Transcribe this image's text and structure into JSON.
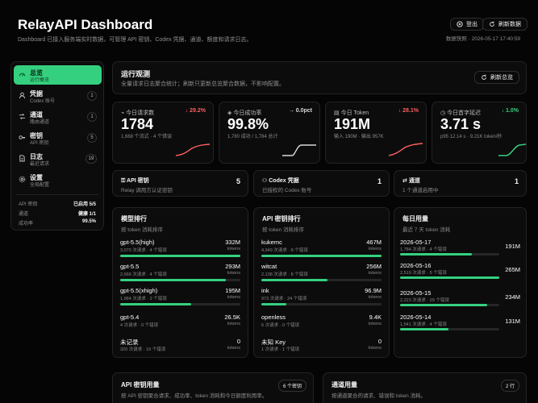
{
  "header": {
    "title": "RelayAPI Dashboard",
    "subtitle": "Dashboard 已接入服务端实时数据，可管理 API 密钥、Codex 凭据、通道、额度和请求日志。",
    "logout_label": "登出",
    "refresh_label": "刷新数据",
    "snapshot": "数据快照 · 2026-05-17 17:40:59"
  },
  "sidebar": {
    "items": [
      {
        "label": "总览",
        "sub": "运行概览",
        "count": ""
      },
      {
        "label": "凭据",
        "sub": "Codex 账号",
        "count": "1"
      },
      {
        "label": "通道",
        "sub": "路由通道",
        "count": "1"
      },
      {
        "label": "密钥",
        "sub": "API 密钥",
        "count": "5"
      },
      {
        "label": "日志",
        "sub": "最近请求",
        "count": "19"
      },
      {
        "label": "设置",
        "sub": "全局配置",
        "count": ""
      }
    ],
    "status": [
      {
        "label": "API 密钥",
        "value": "已启用 5/5"
      },
      {
        "label": "通道",
        "value": "健康 1/1"
      },
      {
        "label": "成功率",
        "value": "99.5%"
      }
    ]
  },
  "overview": {
    "title": "运行观测",
    "subtitle": "全量请求日志聚合统计；刷新只更新总览聚合数据，不影响配置。",
    "refresh_label": "刷新总览"
  },
  "kpis": [
    {
      "label": "今日请求数",
      "delta": "↓ 29.2%",
      "value": "1784",
      "sub": "1,668 个流式 · 4 个错误",
      "color": "#ff5f5f"
    },
    {
      "label": "今日成功率",
      "delta": "→ 0.0pct",
      "value": "99.8%",
      "sub": "1,780 成功 / 1,784 总计",
      "color": "#d8d8d8"
    },
    {
      "label": "今日 Token",
      "delta": "↓ 28.1%",
      "value": "191M",
      "sub": "输入 190M · 输出 957K",
      "color": "#ff5f5f"
    },
    {
      "label": "今日首字延迟",
      "delta": "↓ 1.0%",
      "value": "3.71 s",
      "sub": "p95 12.14 s · 9.21K token/秒",
      "color": "#35d07f"
    }
  ],
  "minis": [
    {
      "title": "API 密钥",
      "sub": "Relay 调用方认证密钥",
      "count": "5"
    },
    {
      "title": "Codex 凭据",
      "sub": "已授权的 Codex 账号",
      "count": "1"
    },
    {
      "title": "通道",
      "sub": "1 个通道启用中",
      "count": "1"
    }
  ],
  "model_rank": {
    "title": "模型排行",
    "sub": "按 token 消耗排序",
    "rows": [
      {
        "name": "gpt-5.5(high)",
        "desc": "3,070 次请求 · 4 个错误",
        "value": "332M",
        "unit": "tokens",
        "pct": 100
      },
      {
        "name": "gpt-5.5",
        "desc": "2,666 次请求 · 4 个错误",
        "value": "293M",
        "unit": "tokens",
        "pct": 88
      },
      {
        "name": "gpt-5.5(xhigh)",
        "desc": "1,984 次请求 · 2 个错误",
        "value": "195M",
        "unit": "tokens",
        "pct": 59
      },
      {
        "name": "gpt-5.4",
        "desc": "4 次请求 · 0 个错误",
        "value": "26.5K",
        "unit": "tokens",
        "pct": 0
      },
      {
        "name": "未记录",
        "desc": "320 次请求 · 10 个错误",
        "value": "0",
        "unit": "tokens",
        "pct": 0
      }
    ]
  },
  "key_rank": {
    "title": "API 密钥排行",
    "sub": "按 token 消耗排序",
    "rows": [
      {
        "name": "kukemc",
        "desc": "4,949 次请求 · 9 个错误",
        "value": "467M",
        "unit": "tokens",
        "pct": 100
      },
      {
        "name": "witcat",
        "desc": "2,138 次请求 · 8 个错误",
        "value": "256M",
        "unit": "tokens",
        "pct": 55
      },
      {
        "name": "ink",
        "desc": "973 次请求 · 24 个错误",
        "value": "96.9M",
        "unit": "tokens",
        "pct": 21
      },
      {
        "name": "openless",
        "desc": "6 次请求 · 0 个错误",
        "value": "9.4K",
        "unit": "tokens",
        "pct": 0
      },
      {
        "name": "未知 Key",
        "desc": "1 次请求 · 1 个错误",
        "value": "0",
        "unit": "tokens",
        "pct": 0
      }
    ]
  },
  "daily": {
    "title": "每日用量",
    "sub": "最近 7 天 token 消耗",
    "rows": [
      {
        "name": "2026-05-17",
        "desc": "1,784 次请求 · 4 个错误",
        "value": "191M",
        "pct": 72
      },
      {
        "name": "2026-05-16",
        "desc": "2,519 次请求 · 5 个错误",
        "value": "265M",
        "pct": 100
      },
      {
        "name": "2026-05-15",
        "desc": "2,223 次请求 · 29 个错误",
        "value": "234M",
        "pct": 88
      },
      {
        "name": "2026-05-14",
        "desc": "1,541 次请求 · 4 个错误",
        "value": "131M",
        "pct": 49
      }
    ]
  },
  "bottom": [
    {
      "title": "API 密钥用量",
      "sub": "按 API 密钥聚合请求、成功率、token 消耗和今日额度利用率。",
      "badge": "6 个密钥"
    },
    {
      "title": "通道用量",
      "sub": "按通道聚合的请求、错误和 token 消耗。",
      "badge": "2 行"
    }
  ]
}
